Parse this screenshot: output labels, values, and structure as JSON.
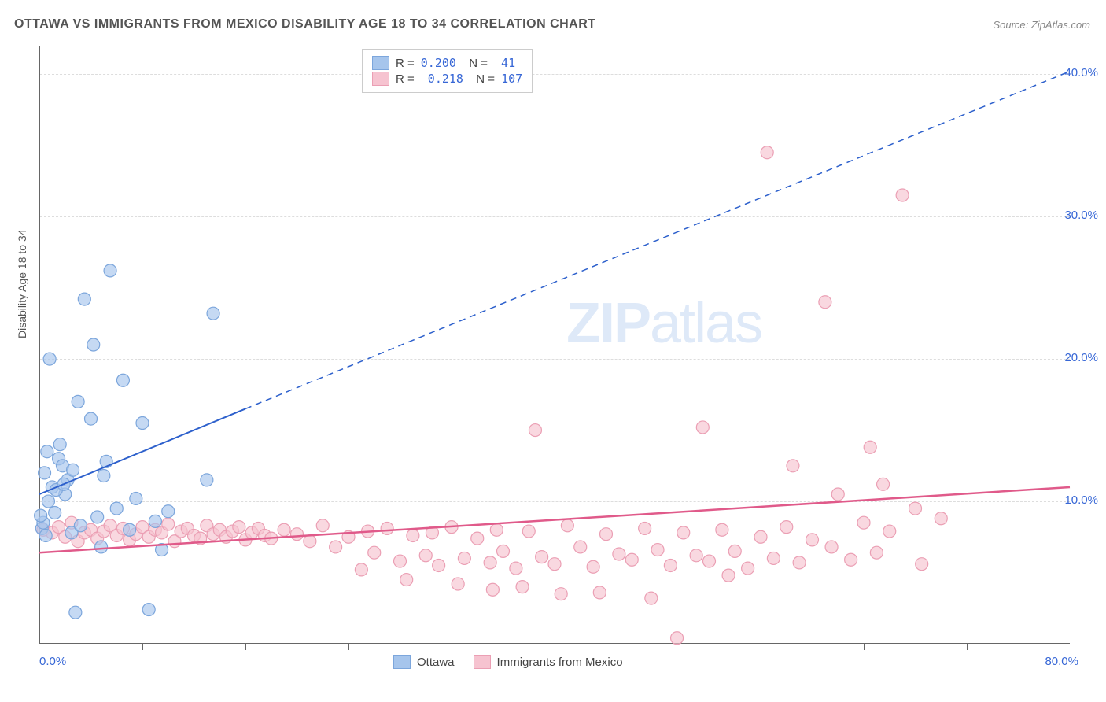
{
  "title": "OTTAWA VS IMMIGRANTS FROM MEXICO DISABILITY AGE 18 TO 34 CORRELATION CHART",
  "source": "Source: ZipAtlas.com",
  "watermark_bold": "ZIP",
  "watermark_light": "atlas",
  "y_axis_label": "Disability Age 18 to 34",
  "chart": {
    "type": "scatter",
    "xlim": [
      0,
      80
    ],
    "ylim": [
      0,
      42
    ],
    "y_ticks": [
      10,
      20,
      30,
      40
    ],
    "y_tick_labels": [
      "10.0%",
      "20.0%",
      "30.0%",
      "40.0%"
    ],
    "x_min_label": "0.0%",
    "x_max_label": "80.0%",
    "x_tick_positions": [
      8,
      16,
      24,
      32,
      40,
      48,
      56,
      64,
      72
    ],
    "background_color": "#ffffff",
    "grid_color": "#dddddd",
    "border_color": "#666666",
    "marker_radius": 8,
    "marker_stroke_width": 1.2,
    "series": [
      {
        "name": "Ottawa",
        "color_fill": "#a6c5ec",
        "color_stroke": "#7ca6dc",
        "r_value": "0.200",
        "n_value": "41",
        "trend_solid": {
          "x1": 0,
          "y1": 10.5,
          "x2": 16,
          "y2": 16.5
        },
        "trend_dashed": {
          "x1": 16,
          "y1": 16.5,
          "x2": 80,
          "y2": 40.2
        },
        "trend_color": "#2d60cc",
        "trend_width": 2,
        "points": [
          [
            0.2,
            8.1
          ],
          [
            0.3,
            8.5
          ],
          [
            0.5,
            7.6
          ],
          [
            0.8,
            20.0
          ],
          [
            1.0,
            11.0
          ],
          [
            1.2,
            9.2
          ],
          [
            1.5,
            13.0
          ],
          [
            1.6,
            14.0
          ],
          [
            1.8,
            12.5
          ],
          [
            2.0,
            10.5
          ],
          [
            2.2,
            11.5
          ],
          [
            2.5,
            7.8
          ],
          [
            3.0,
            17.0
          ],
          [
            3.2,
            8.3
          ],
          [
            3.5,
            24.2
          ],
          [
            4.0,
            15.8
          ],
          [
            4.2,
            21.0
          ],
          [
            4.5,
            8.9
          ],
          [
            5.0,
            11.8
          ],
          [
            5.2,
            12.8
          ],
          [
            5.5,
            26.2
          ],
          [
            6.0,
            9.5
          ],
          [
            6.5,
            18.5
          ],
          [
            7.0,
            8.0
          ],
          [
            7.5,
            10.2
          ],
          [
            8.0,
            15.5
          ],
          [
            2.8,
            2.2
          ],
          [
            4.8,
            6.8
          ],
          [
            8.5,
            2.4
          ],
          [
            9.0,
            8.6
          ],
          [
            9.5,
            6.6
          ],
          [
            10.0,
            9.3
          ],
          [
            13.0,
            11.5
          ],
          [
            13.5,
            23.2
          ],
          [
            0.1,
            9.0
          ],
          [
            0.4,
            12.0
          ],
          [
            0.6,
            13.5
          ],
          [
            1.3,
            10.8
          ],
          [
            1.9,
            11.2
          ],
          [
            2.6,
            12.2
          ],
          [
            0.7,
            10.0
          ]
        ]
      },
      {
        "name": "Immigrants from Mexico",
        "color_fill": "#f6c3d0",
        "color_stroke": "#eb9fb4",
        "r_value": "0.218",
        "n_value": "107",
        "trend_solid": {
          "x1": 0,
          "y1": 6.4,
          "x2": 80,
          "y2": 11.0
        },
        "trend_color": "#e05a8a",
        "trend_width": 2.5,
        "points": [
          [
            0.3,
            8.0
          ],
          [
            1.0,
            7.8
          ],
          [
            1.5,
            8.2
          ],
          [
            2.0,
            7.5
          ],
          [
            2.5,
            8.5
          ],
          [
            3.0,
            7.2
          ],
          [
            3.5,
            7.8
          ],
          [
            4.0,
            8.0
          ],
          [
            4.5,
            7.4
          ],
          [
            5.0,
            7.9
          ],
          [
            5.5,
            8.3
          ],
          [
            6.0,
            7.6
          ],
          [
            6.5,
            8.1
          ],
          [
            7.0,
            7.3
          ],
          [
            7.5,
            7.7
          ],
          [
            8.0,
            8.2
          ],
          [
            8.5,
            7.5
          ],
          [
            9.0,
            8.0
          ],
          [
            9.5,
            7.8
          ],
          [
            10.0,
            8.4
          ],
          [
            10.5,
            7.2
          ],
          [
            11.0,
            7.9
          ],
          [
            11.5,
            8.1
          ],
          [
            12.0,
            7.6
          ],
          [
            12.5,
            7.4
          ],
          [
            13.0,
            8.3
          ],
          [
            13.5,
            7.7
          ],
          [
            14.0,
            8.0
          ],
          [
            14.5,
            7.5
          ],
          [
            15.0,
            7.9
          ],
          [
            15.5,
            8.2
          ],
          [
            16.0,
            7.3
          ],
          [
            16.5,
            7.8
          ],
          [
            17.0,
            8.1
          ],
          [
            17.5,
            7.6
          ],
          [
            18.0,
            7.4
          ],
          [
            19.0,
            8.0
          ],
          [
            20.0,
            7.7
          ],
          [
            21.0,
            7.2
          ],
          [
            22.0,
            8.3
          ],
          [
            23.0,
            6.8
          ],
          [
            24.0,
            7.5
          ],
          [
            25.0,
            5.2
          ],
          [
            25.5,
            7.9
          ],
          [
            26.0,
            6.4
          ],
          [
            27.0,
            8.1
          ],
          [
            28.0,
            5.8
          ],
          [
            29.0,
            7.6
          ],
          [
            30.0,
            6.2
          ],
          [
            30.5,
            7.8
          ],
          [
            31.0,
            5.5
          ],
          [
            32.0,
            8.2
          ],
          [
            33.0,
            6.0
          ],
          [
            34.0,
            7.4
          ],
          [
            35.0,
            5.7
          ],
          [
            35.5,
            8.0
          ],
          [
            36.0,
            6.5
          ],
          [
            37.0,
            5.3
          ],
          [
            38.0,
            7.9
          ],
          [
            38.5,
            15.0
          ],
          [
            39.0,
            6.1
          ],
          [
            40.0,
            5.6
          ],
          [
            41.0,
            8.3
          ],
          [
            42.0,
            6.8
          ],
          [
            43.0,
            5.4
          ],
          [
            44.0,
            7.7
          ],
          [
            45.0,
            6.3
          ],
          [
            46.0,
            5.9
          ],
          [
            47.0,
            8.1
          ],
          [
            47.5,
            3.2
          ],
          [
            48.0,
            6.6
          ],
          [
            49.0,
            5.5
          ],
          [
            50.0,
            7.8
          ],
          [
            51.0,
            6.2
          ],
          [
            51.5,
            15.2
          ],
          [
            52.0,
            5.8
          ],
          [
            53.0,
            8.0
          ],
          [
            54.0,
            6.5
          ],
          [
            55.0,
            5.3
          ],
          [
            56.0,
            7.5
          ],
          [
            56.5,
            34.5
          ],
          [
            57.0,
            6.0
          ],
          [
            58.0,
            8.2
          ],
          [
            58.5,
            12.5
          ],
          [
            59.0,
            5.7
          ],
          [
            60.0,
            7.3
          ],
          [
            61.0,
            24.0
          ],
          [
            61.5,
            6.8
          ],
          [
            62.0,
            10.5
          ],
          [
            63.0,
            5.9
          ],
          [
            64.0,
            8.5
          ],
          [
            64.5,
            13.8
          ],
          [
            65.0,
            6.4
          ],
          [
            65.5,
            11.2
          ],
          [
            66.0,
            7.9
          ],
          [
            67.0,
            31.5
          ],
          [
            68.0,
            9.5
          ],
          [
            68.5,
            5.6
          ],
          [
            70.0,
            8.8
          ],
          [
            49.5,
            0.4
          ],
          [
            35.2,
            3.8
          ],
          [
            40.5,
            3.5
          ],
          [
            43.5,
            3.6
          ],
          [
            28.5,
            4.5
          ],
          [
            32.5,
            4.2
          ],
          [
            37.5,
            4.0
          ],
          [
            53.5,
            4.8
          ]
        ]
      }
    ]
  }
}
